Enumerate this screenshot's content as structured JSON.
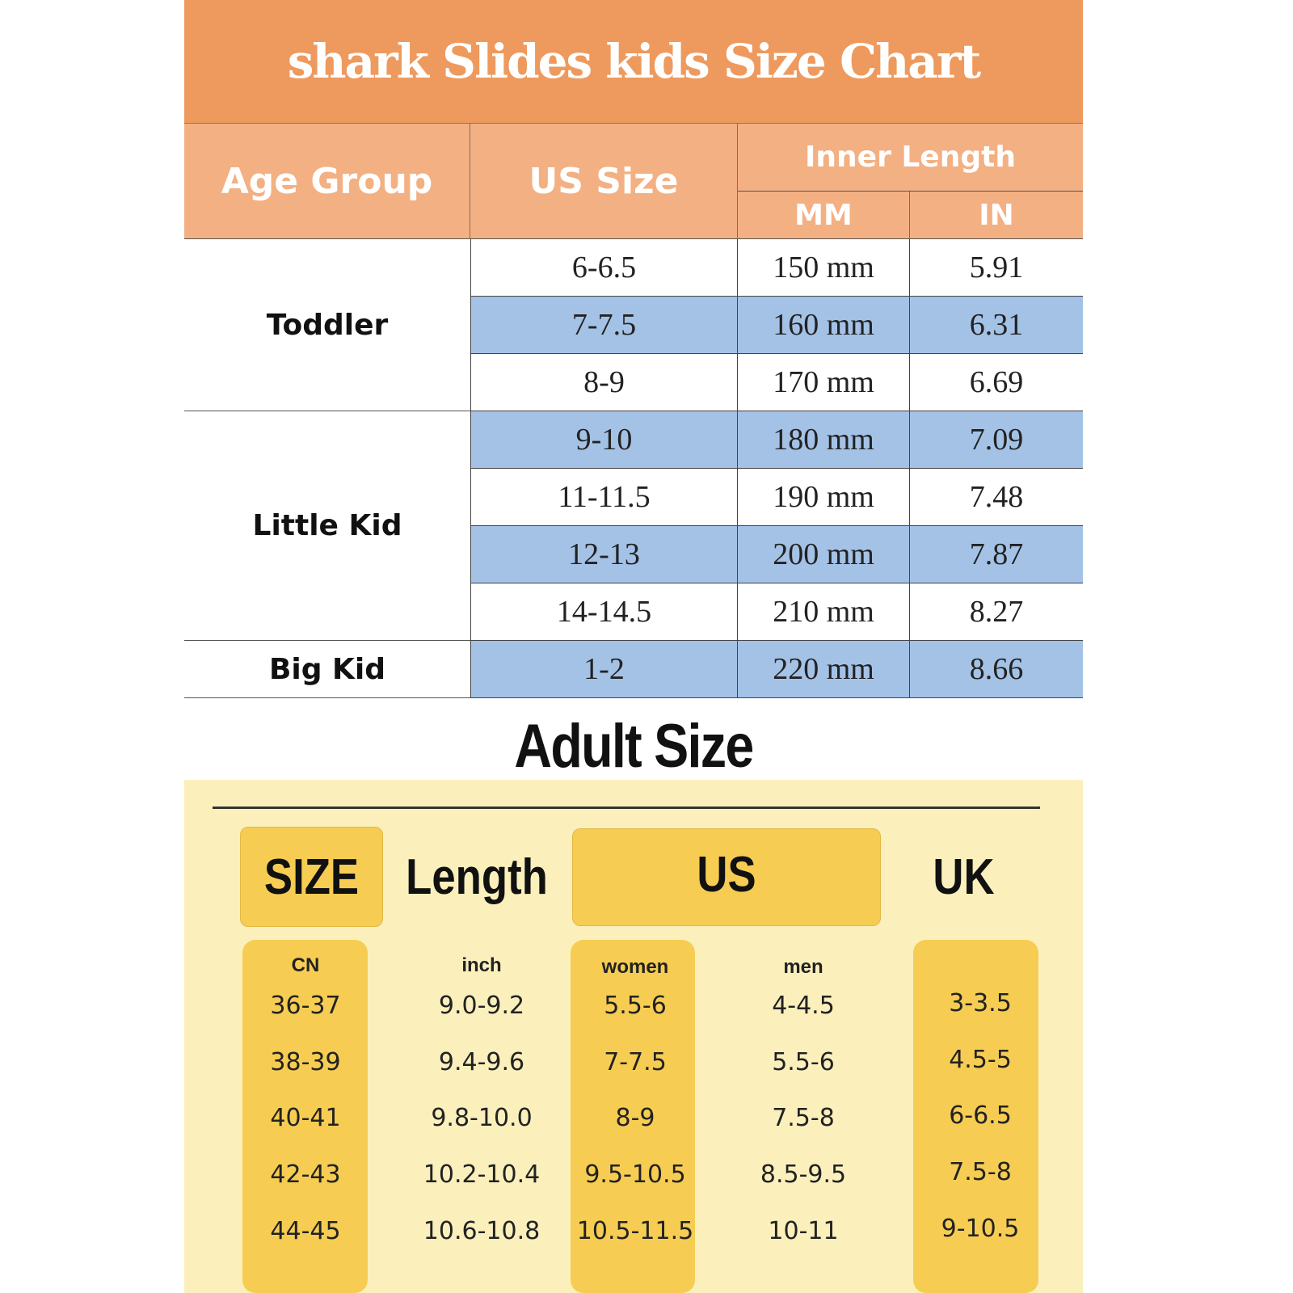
{
  "kids": {
    "title": "shark Slides kids Size Chart",
    "headers": {
      "age_group": "Age Group",
      "us_size": "US Size",
      "inner_length": "Inner Length",
      "mm": "MM",
      "in": "IN"
    },
    "groups": [
      {
        "label": "Toddler",
        "rows": 3
      },
      {
        "label": "Little Kid",
        "rows": 4
      },
      {
        "label": "Big Kid",
        "rows": 1
      }
    ],
    "rows": [
      {
        "us": "6-6.5",
        "mm": "150  mm",
        "in": "5.91",
        "highlight": false
      },
      {
        "us": "7-7.5",
        "mm": "160  mm",
        "in": "6.31",
        "highlight": true
      },
      {
        "us": "8-9",
        "mm": "170  mm",
        "in": "6.69",
        "highlight": false
      },
      {
        "us": "9-10",
        "mm": "180  mm",
        "in": "7.09",
        "highlight": true
      },
      {
        "us": "11-11.5",
        "mm": "190  mm",
        "in": "7.48",
        "highlight": false
      },
      {
        "us": "12-13",
        "mm": "200  mm",
        "in": "7.87",
        "highlight": true
      },
      {
        "us": "14-14.5",
        "mm": "210  mm",
        "in": "8.27",
        "highlight": false
      },
      {
        "us": "1-2",
        "mm": "220  mm",
        "in": "8.66",
        "highlight": true
      }
    ],
    "colors": {
      "title_bg": "#EE9A5E",
      "header_bg": "#F3B083",
      "highlight_row": "#A4C2E6"
    }
  },
  "adult": {
    "title": "Adult Size",
    "headers": {
      "size": "SIZE",
      "length": "Length",
      "us": "US",
      "uk": "UK"
    },
    "subheaders": {
      "cn": "CN",
      "inch": "inch",
      "women": "women",
      "men": "men"
    },
    "rows": [
      {
        "cn": "36-37",
        "inch": "9.0-9.2",
        "women": "5.5-6",
        "men": "4-4.5",
        "uk": "3-3.5"
      },
      {
        "cn": "38-39",
        "inch": "9.4-9.6",
        "women": "7-7.5",
        "men": "5.5-6",
        "uk": "4.5-5"
      },
      {
        "cn": "40-41",
        "inch": "9.8-10.0",
        "women": "8-9",
        "men": "7.5-8",
        "uk": "6-6.5"
      },
      {
        "cn": "42-43",
        "inch": "10.2-10.4",
        "women": "9.5-10.5",
        "men": "8.5-9.5",
        "uk": "7.5-8"
      },
      {
        "cn": "44-45",
        "inch": "10.6-10.8",
        "women": "10.5-11.5",
        "men": "10-11",
        "uk": "9-10.5"
      }
    ],
    "colors": {
      "background": "#FBF0BC",
      "highlight": "#F6CD52"
    }
  }
}
